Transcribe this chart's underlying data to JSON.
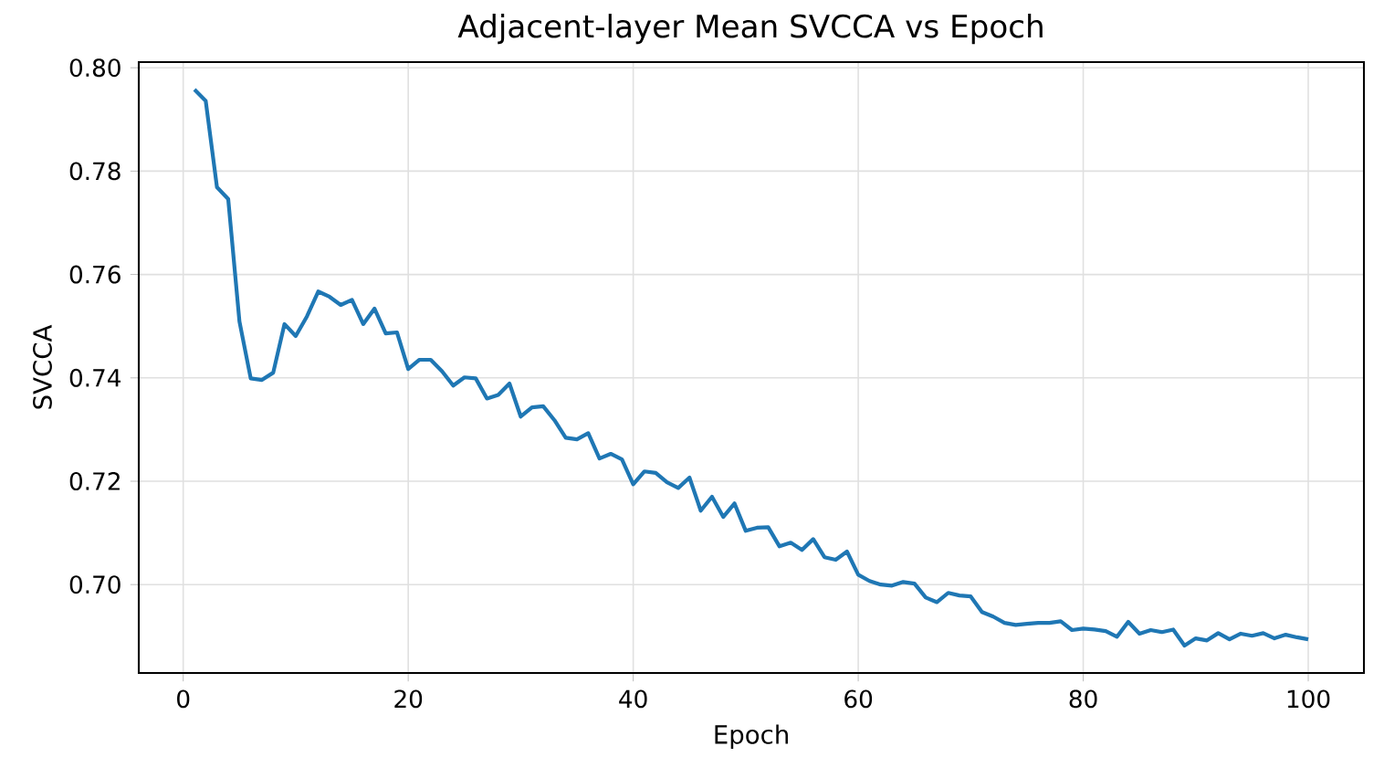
{
  "chart_data": {
    "type": "line",
    "title": "Adjacent-layer Mean SVCCA vs Epoch",
    "xlabel": "Epoch",
    "ylabel": "SVCCA",
    "x": [
      1,
      2,
      3,
      4,
      5,
      6,
      7,
      8,
      9,
      10,
      11,
      12,
      13,
      14,
      15,
      16,
      17,
      18,
      19,
      20,
      21,
      22,
      23,
      24,
      25,
      26,
      27,
      28,
      29,
      30,
      31,
      32,
      33,
      34,
      35,
      36,
      37,
      38,
      39,
      40,
      41,
      42,
      43,
      44,
      45,
      46,
      47,
      48,
      49,
      50,
      51,
      52,
      53,
      54,
      55,
      56,
      57,
      58,
      59,
      60,
      61,
      62,
      63,
      64,
      65,
      66,
      67,
      68,
      69,
      70,
      71,
      72,
      73,
      74,
      75,
      76,
      77,
      78,
      79,
      80,
      81,
      82,
      83,
      84,
      85,
      86,
      87,
      88,
      89,
      90,
      91,
      92,
      93,
      94,
      95,
      96,
      97,
      98,
      99,
      100
    ],
    "series": [
      {
        "color": "#1f77b4",
        "values": [
          0.7958,
          0.7936,
          0.7769,
          0.7746,
          0.7509,
          0.7399,
          0.7396,
          0.741,
          0.7504,
          0.7481,
          0.7519,
          0.7567,
          0.7557,
          0.7541,
          0.7551,
          0.7504,
          0.7534,
          0.7486,
          0.7488,
          0.7417,
          0.7435,
          0.7435,
          0.7413,
          0.7385,
          0.7401,
          0.7399,
          0.736,
          0.7367,
          0.7389,
          0.7325,
          0.7343,
          0.7345,
          0.7318,
          0.7284,
          0.7281,
          0.7293,
          0.7244,
          0.7253,
          0.7242,
          0.7194,
          0.7219,
          0.7216,
          0.7198,
          0.7187,
          0.7207,
          0.7143,
          0.717,
          0.7131,
          0.7157,
          0.7104,
          0.711,
          0.7111,
          0.7074,
          0.7081,
          0.7067,
          0.7088,
          0.7053,
          0.7048,
          0.7064,
          0.7019,
          0.7007,
          0.7,
          0.6998,
          0.7005,
          0.7002,
          0.6975,
          0.6966,
          0.6984,
          0.6979,
          0.6977,
          0.6947,
          0.6938,
          0.6926,
          0.6922,
          0.6924,
          0.6926,
          0.6926,
          0.6929,
          0.6912,
          0.6915,
          0.6913,
          0.691,
          0.6899,
          0.6928,
          0.6905,
          0.6912,
          0.6908,
          0.6913,
          0.6882,
          0.6896,
          0.6892,
          0.6906,
          0.6894,
          0.6905,
          0.6901,
          0.6906,
          0.6896,
          0.6903,
          0.6898,
          0.6894
        ]
      }
    ],
    "xlim": [
      -3.95,
      104.95
    ],
    "ylim": [
      0.6829,
      0.8011
    ],
    "xticks": [
      0,
      20,
      40,
      60,
      80,
      100
    ],
    "yticks": [
      {
        "value": 0.7,
        "label": "0.70"
      },
      {
        "value": 0.72,
        "label": "0.72"
      },
      {
        "value": 0.74,
        "label": "0.74"
      },
      {
        "value": 0.76,
        "label": "0.76"
      },
      {
        "value": 0.78,
        "label": "0.78"
      },
      {
        "value": 0.8,
        "label": "0.80"
      }
    ],
    "grid": true,
    "marker": "none",
    "line_style": "solid"
  }
}
